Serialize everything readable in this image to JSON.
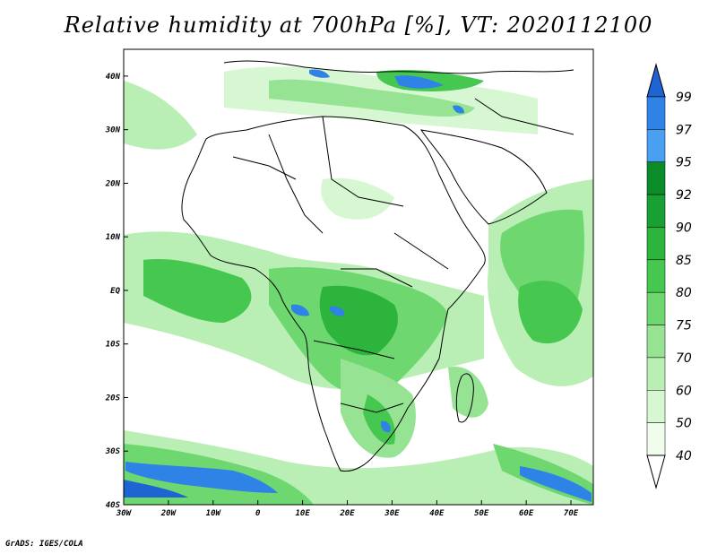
{
  "title": "Relative humidity at 700hPa [%], VT: 2020112100",
  "credit": "GrADS: IGES/COLA",
  "map": {
    "lon_ticks": [
      "30W",
      "20W",
      "10W",
      "0",
      "10E",
      "20E",
      "30E",
      "40E",
      "50E",
      "60E",
      "70E"
    ],
    "lat_ticks": [
      "40N",
      "30N",
      "20N",
      "10N",
      "EQ",
      "10S",
      "20S",
      "30S",
      "40S"
    ],
    "lon_range": [
      -30,
      75
    ],
    "lat_range": [
      -40,
      45
    ]
  },
  "colorbar": {
    "levels": [
      "99",
      "97",
      "95",
      "92",
      "90",
      "85",
      "80",
      "75",
      "70",
      "60",
      "50",
      "40"
    ],
    "colors": {
      "ge99": "#1e64d2",
      "97_99": "#2f82e6",
      "95_97": "#4aa0f0",
      "92_95": "#0a8c28",
      "90_92": "#19a032",
      "85_90": "#2db43c",
      "80_85": "#46c850",
      "75_80": "#6ed770",
      "70_75": "#96e394",
      "60_70": "#b9efb4",
      "50_60": "#d7f7d2",
      "40_50": "#f0fdec"
    }
  }
}
